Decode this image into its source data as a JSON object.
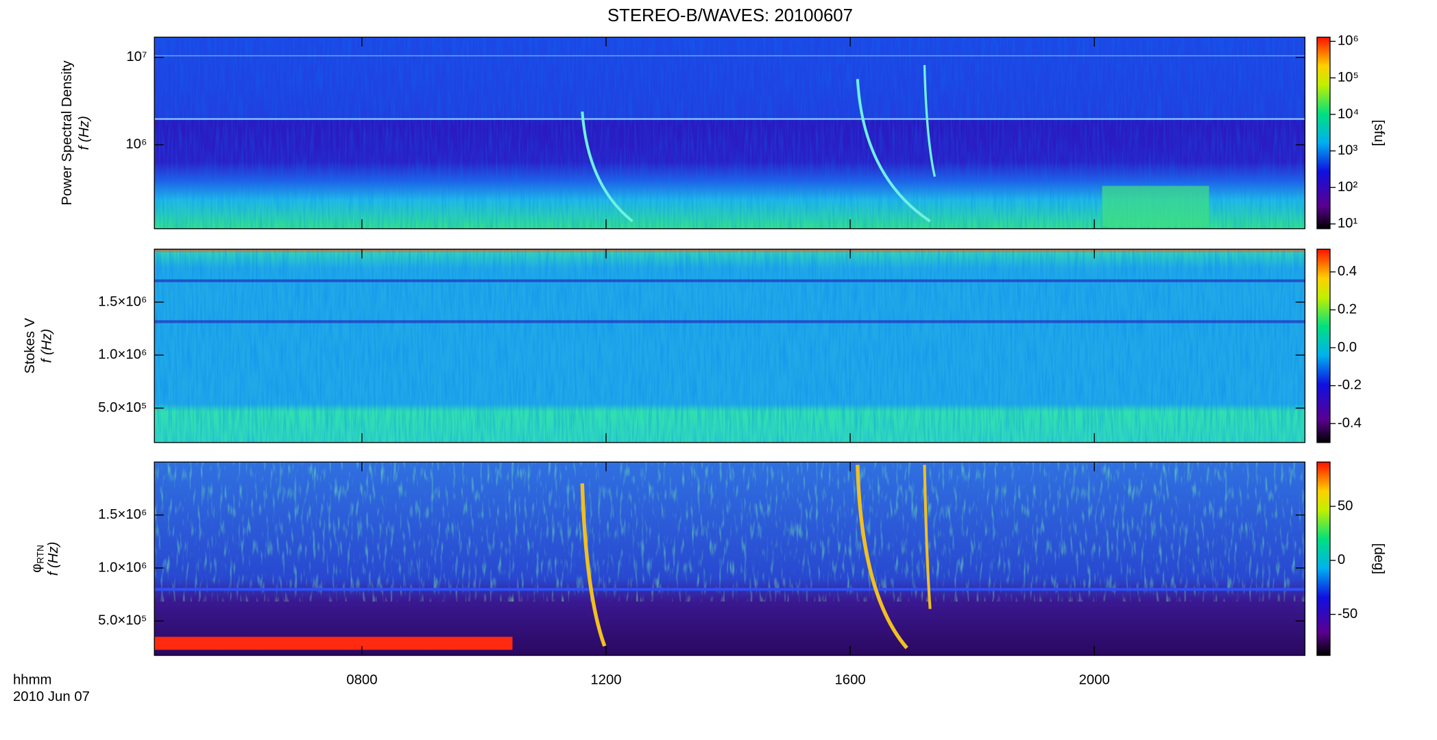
{
  "title": "STEREO-B/WAVES: 20100607",
  "x_axis": {
    "label": "hhmm",
    "date": "2010 Jun 07",
    "xlim": [
      4.6,
      23.45
    ],
    "xticks": [
      {
        "value": 8,
        "label": "0800"
      },
      {
        "value": 12,
        "label": "1200"
      },
      {
        "value": 16,
        "label": "1600"
      },
      {
        "value": 20,
        "label": "2000"
      }
    ]
  },
  "chart_data": [
    {
      "type": "heatmap",
      "ylabel": "Power Spectral Density",
      "ylabel_unit": "f (Hz)",
      "yscale": "log",
      "ylim": [
        110000,
        17000000
      ],
      "yticks": [
        {
          "value": 1000000,
          "label": "10⁶"
        },
        {
          "value": 10000000,
          "label": "10⁷"
        }
      ],
      "colorbar": {
        "label": "[sfu]",
        "scale": "log",
        "lim": [
          7.4,
          1300000
        ],
        "ticks": [
          {
            "value": 10,
            "label": "10¹"
          },
          {
            "value": 100,
            "label": "10²"
          },
          {
            "value": 1000,
            "label": "10³"
          },
          {
            "value": 10000,
            "label": "10⁴"
          },
          {
            "value": 100000,
            "label": "10⁵"
          },
          {
            "value": 1000000,
            "label": "10⁶"
          }
        ]
      }
    },
    {
      "type": "heatmap",
      "ylabel": "Stokes V",
      "ylabel_unit": "f (Hz)",
      "yscale": "linear",
      "ylim": [
        175000,
        2000000
      ],
      "yticks": [
        {
          "value": 500000,
          "label": "5.0×10⁵"
        },
        {
          "value": 1000000,
          "label": "1.0×10⁶"
        },
        {
          "value": 1500000,
          "label": "1.5×10⁶"
        }
      ],
      "colorbar": {
        "label": "",
        "scale": "linear",
        "lim": [
          -0.5,
          0.52
        ],
        "ticks": [
          -0.4,
          -0.2,
          {
            "value": 0,
            "label": "0.0"
          },
          0.2,
          0.4
        ]
      }
    },
    {
      "type": "heatmap",
      "ylabel": "φ",
      "ylabel_subscript": "RTN",
      "ylabel_unit": "f (Hz)",
      "yscale": "linear",
      "ylim": [
        175000,
        2000000
      ],
      "yticks": [
        {
          "value": 500000,
          "label": "5.0×10⁵"
        },
        {
          "value": 1000000,
          "label": "1.0×10⁶"
        },
        {
          "value": 1500000,
          "label": "1.5×10⁶"
        }
      ],
      "colorbar": {
        "label": "[deg]",
        "scale": "linear",
        "lim": [
          -88,
          91
        ],
        "ticks": [
          -50,
          0,
          50
        ]
      }
    }
  ]
}
